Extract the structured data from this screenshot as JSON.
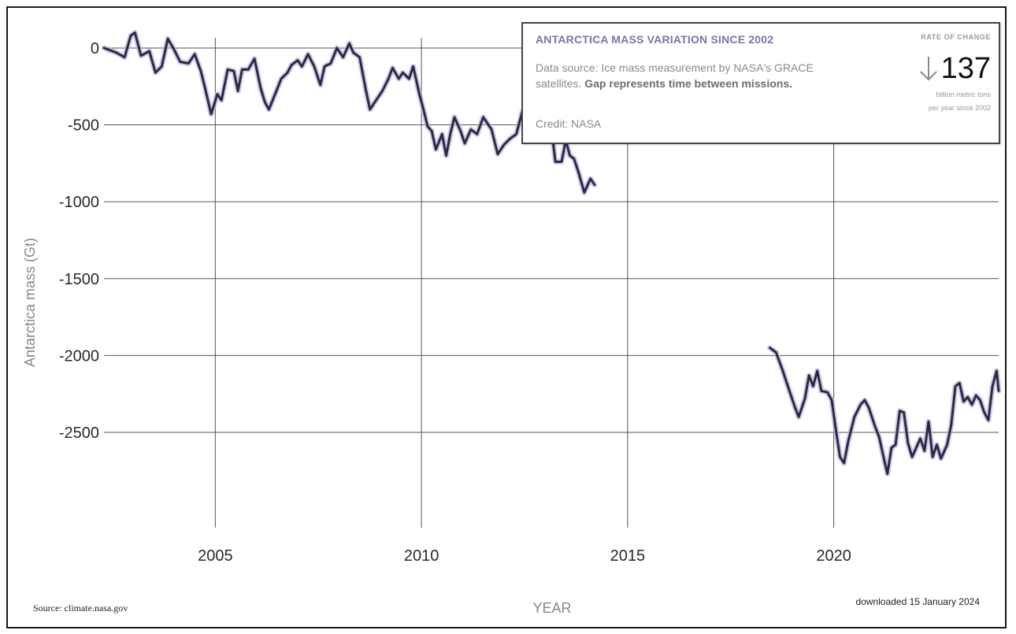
{
  "chart_data": {
    "type": "line",
    "title": "ANTARCTICA MASS VARIATION SINCE 2002",
    "xlabel": "YEAR",
    "ylabel": "Antarctica mass (Gt)",
    "xlim": [
      2002.3,
      2024.0
    ],
    "ylim": [
      -3120,
      220
    ],
    "xticks": [
      2005,
      2010,
      2015,
      2020
    ],
    "yticks": [
      0,
      -500,
      -1000,
      -1500,
      -2000,
      -2500
    ],
    "grid": true,
    "series": [
      {
        "color": "#2b2a3d",
        "uncertainty_color": "#b9b5e6",
        "segments": [
          [
            [
              2002.3,
              0
            ],
            [
              2002.6,
              -30
            ],
            [
              2002.8,
              -60
            ],
            [
              2002.95,
              80
            ],
            [
              2003.05,
              100
            ],
            [
              2003.2,
              -50
            ],
            [
              2003.4,
              -20
            ],
            [
              2003.55,
              -160
            ],
            [
              2003.7,
              -120
            ],
            [
              2003.85,
              60
            ],
            [
              2004.0,
              -10
            ],
            [
              2004.15,
              -90
            ],
            [
              2004.35,
              -100
            ],
            [
              2004.5,
              -40
            ],
            [
              2004.65,
              -150
            ],
            [
              2004.75,
              -260
            ],
            [
              2004.9,
              -430
            ],
            [
              2005.05,
              -300
            ],
            [
              2005.15,
              -340
            ],
            [
              2005.3,
              -140
            ],
            [
              2005.45,
              -150
            ],
            [
              2005.55,
              -280
            ],
            [
              2005.65,
              -140
            ],
            [
              2005.8,
              -140
            ],
            [
              2005.95,
              -70
            ],
            [
              2006.1,
              -260
            ],
            [
              2006.2,
              -350
            ],
            [
              2006.3,
              -400
            ],
            [
              2006.45,
              -300
            ],
            [
              2006.6,
              -200
            ],
            [
              2006.75,
              -160
            ],
            [
              2006.85,
              -110
            ],
            [
              2007.0,
              -80
            ],
            [
              2007.1,
              -120
            ],
            [
              2007.25,
              -40
            ],
            [
              2007.4,
              -120
            ],
            [
              2007.55,
              -240
            ],
            [
              2007.65,
              -120
            ],
            [
              2007.8,
              -100
            ],
            [
              2007.95,
              0
            ],
            [
              2008.1,
              -60
            ],
            [
              2008.25,
              30
            ],
            [
              2008.35,
              -30
            ],
            [
              2008.5,
              -60
            ],
            [
              2008.65,
              -270
            ],
            [
              2008.75,
              -400
            ],
            [
              2008.9,
              -340
            ],
            [
              2009.05,
              -280
            ],
            [
              2009.2,
              -200
            ],
            [
              2009.3,
              -130
            ],
            [
              2009.45,
              -200
            ],
            [
              2009.55,
              -160
            ],
            [
              2009.7,
              -200
            ],
            [
              2009.8,
              -120
            ],
            [
              2009.95,
              -300
            ],
            [
              2010.05,
              -400
            ],
            [
              2010.15,
              -510
            ],
            [
              2010.25,
              -540
            ],
            [
              2010.35,
              -660
            ],
            [
              2010.5,
              -560
            ],
            [
              2010.6,
              -700
            ],
            [
              2010.7,
              -560
            ],
            [
              2010.8,
              -450
            ],
            [
              2010.95,
              -540
            ],
            [
              2011.05,
              -620
            ],
            [
              2011.2,
              -530
            ],
            [
              2011.35,
              -560
            ],
            [
              2011.5,
              -450
            ],
            [
              2011.7,
              -530
            ],
            [
              2011.85,
              -690
            ],
            [
              2012.0,
              -630
            ],
            [
              2012.15,
              -590
            ],
            [
              2012.3,
              -560
            ],
            [
              2012.45,
              -410
            ],
            [
              2012.6,
              -460
            ],
            [
              2012.75,
              -480
            ],
            [
              2012.9,
              -510
            ],
            [
              2013.05,
              -470
            ],
            [
              2013.15,
              -520
            ],
            [
              2013.25,
              -740
            ],
            [
              2013.4,
              -740
            ],
            [
              2013.5,
              -600
            ],
            [
              2013.6,
              -700
            ],
            [
              2013.7,
              -720
            ],
            [
              2013.8,
              -800
            ],
            [
              2013.95,
              -940
            ],
            [
              2014.1,
              -850
            ],
            [
              2014.2,
              -890
            ]
          ],
          [
            [
              2018.45,
              -1950
            ],
            [
              2018.6,
              -1980
            ],
            [
              2018.75,
              -2090
            ],
            [
              2018.9,
              -2210
            ],
            [
              2019.05,
              -2330
            ],
            [
              2019.15,
              -2400
            ],
            [
              2019.3,
              -2280
            ],
            [
              2019.4,
              -2130
            ],
            [
              2019.5,
              -2200
            ],
            [
              2019.6,
              -2100
            ],
            [
              2019.7,
              -2230
            ],
            [
              2019.85,
              -2240
            ],
            [
              2019.95,
              -2290
            ],
            [
              2020.05,
              -2480
            ],
            [
              2020.15,
              -2660
            ],
            [
              2020.25,
              -2700
            ],
            [
              2020.35,
              -2560
            ],
            [
              2020.5,
              -2400
            ],
            [
              2020.65,
              -2320
            ],
            [
              2020.75,
              -2290
            ],
            [
              2020.85,
              -2340
            ],
            [
              2021.0,
              -2460
            ],
            [
              2021.1,
              -2530
            ],
            [
              2021.2,
              -2650
            ],
            [
              2021.3,
              -2770
            ],
            [
              2021.4,
              -2600
            ],
            [
              2021.5,
              -2580
            ],
            [
              2021.6,
              -2360
            ],
            [
              2021.7,
              -2370
            ],
            [
              2021.8,
              -2570
            ],
            [
              2021.9,
              -2660
            ],
            [
              2022.0,
              -2600
            ],
            [
              2022.1,
              -2540
            ],
            [
              2022.2,
              -2620
            ],
            [
              2022.3,
              -2430
            ],
            [
              2022.4,
              -2660
            ],
            [
              2022.5,
              -2580
            ],
            [
              2022.6,
              -2670
            ],
            [
              2022.75,
              -2580
            ],
            [
              2022.85,
              -2450
            ],
            [
              2022.95,
              -2200
            ],
            [
              2023.05,
              -2180
            ],
            [
              2023.15,
              -2300
            ],
            [
              2023.25,
              -2270
            ],
            [
              2023.35,
              -2320
            ],
            [
              2023.45,
              -2260
            ],
            [
              2023.55,
              -2290
            ],
            [
              2023.65,
              -2370
            ],
            [
              2023.75,
              -2420
            ],
            [
              2023.85,
              -2200
            ],
            [
              2023.95,
              -2100
            ],
            [
              2024.0,
              -2230
            ]
          ]
        ]
      }
    ]
  },
  "info": {
    "title": "ANTARCTICA MASS VARIATION SINCE 2002",
    "desc_plain": "Data source: Ice mass measurement by NASA's GRACE satellites. ",
    "desc_bold": "Gap represents time between missions.",
    "credit": "Credit: NASA",
    "rate_label": "RATE OF CHANGE",
    "rate_value": "137",
    "rate_direction_icon": "down-arrow-icon",
    "rate_unit_line1": "billion metric tons",
    "rate_unit_line2": "per year since 2002"
  },
  "footer": {
    "source": "Source: climate.nasa.gov",
    "downloaded": "downloaded 15 January 2024"
  }
}
